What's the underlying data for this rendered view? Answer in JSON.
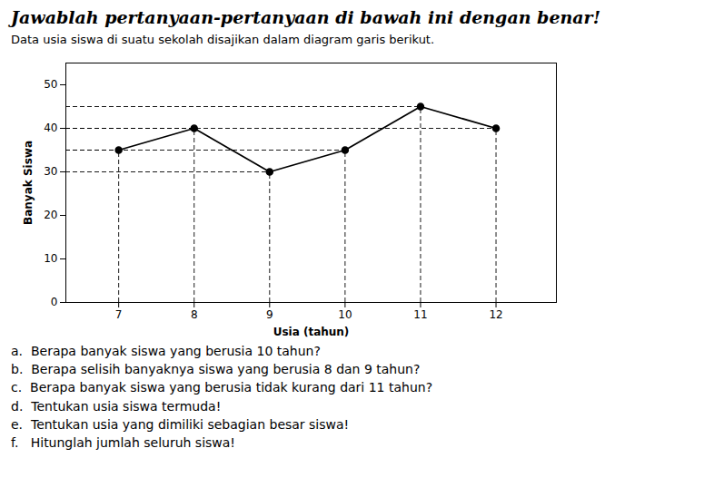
{
  "chart_data": {
    "type": "line",
    "title": "Jawablah pertanyaan-pertanyaan di bawah ini dengan benar!",
    "subtitle": "Data usia siswa di suatu sekolah disajikan dalam diagram garis berikut.",
    "xlabel": "Usia (tahun)",
    "ylabel": "Banyak Siswa",
    "x": [
      7,
      8,
      9,
      10,
      11,
      12
    ],
    "values": [
      35,
      40,
      30,
      35,
      45,
      40
    ],
    "color": "#000000",
    "marker": "circle",
    "xlim": [
      6.3,
      12.8
    ],
    "ylim": [
      0,
      55
    ],
    "xticks": [
      7,
      8,
      9,
      10,
      11,
      12
    ],
    "yticks": [
      0,
      10,
      20,
      30,
      40,
      50
    ],
    "grid": false,
    "annotations": [
      "a.  Berapa banyak siswa yang berusia 10 tahun?",
      "b.  Berapa selisih banyaknya siswa yang berusia 8 dan 9 tahun?",
      "c.  Berapa banyak siswa yang berusia tidak kurang dari 11 tahun?",
      "d.  Tentukan usia siswa termuda!",
      "e.  Tentukan usia yang dimiliki sebagian besar siswa!",
      "f.   Hitunglah jumlah seluruh siswa!"
    ]
  }
}
